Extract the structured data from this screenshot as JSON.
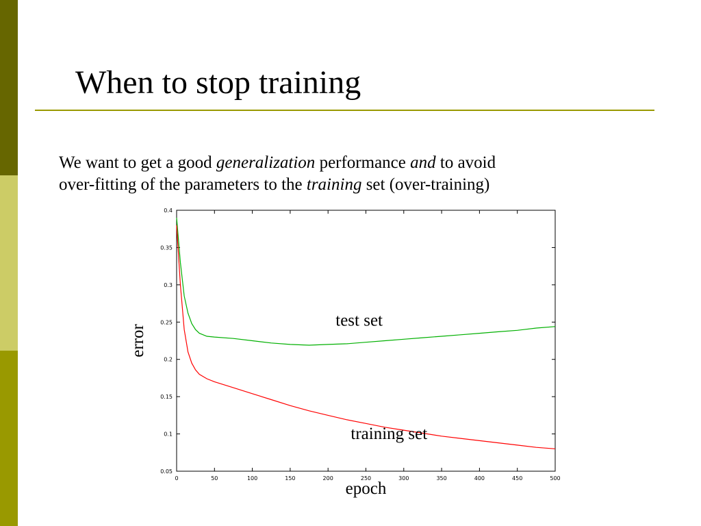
{
  "slide": {
    "title": "When to stop training",
    "colors": {
      "bar_top": "#666600",
      "bar_mid": "#cccc66",
      "bar_bottom": "#999900",
      "rule": "#999900"
    }
  },
  "body": {
    "line1": [
      {
        "text": "We want to get a good ",
        "italic": false
      },
      {
        "text": "generalization",
        "italic": true
      },
      {
        "text": " performance ",
        "italic": false
      },
      {
        "text": "and",
        "italic": true
      },
      {
        "text": " to avoid",
        "italic": false
      }
    ],
    "line2": [
      {
        "text": "over-fitting of the parameters to the ",
        "italic": false
      },
      {
        "text": "training",
        "italic": true
      },
      {
        "text": " set (over-training)",
        "italic": false
      }
    ]
  },
  "chart_data": {
    "type": "line",
    "title": "",
    "xlabel": "epoch",
    "ylabel": "error",
    "xlim": [
      0,
      500
    ],
    "ylim": [
      0.05,
      0.4
    ],
    "x_ticks": [
      0,
      50,
      100,
      150,
      200,
      250,
      300,
      350,
      400,
      450,
      500
    ],
    "y_ticks": [
      0.05,
      0.1,
      0.15,
      0.2,
      0.25,
      0.3,
      0.35,
      0.4
    ],
    "x_tick_labels": [
      "0",
      "50",
      "100",
      "150",
      "200",
      "250",
      "300",
      "350",
      "400",
      "450",
      "500"
    ],
    "y_tick_labels": [
      "0.05",
      "0.1",
      "0.15",
      "0.2",
      "0.25",
      "0.3",
      "0.35",
      "0.4"
    ],
    "grid": false,
    "series": [
      {
        "name": "test set",
        "color": "#00b000",
        "x": [
          0,
          5,
          10,
          15,
          20,
          25,
          30,
          40,
          50,
          75,
          100,
          125,
          150,
          175,
          200,
          225,
          250,
          275,
          300,
          325,
          350,
          375,
          400,
          425,
          450,
          475,
          500
        ],
        "y": [
          0.39,
          0.33,
          0.285,
          0.262,
          0.248,
          0.24,
          0.235,
          0.231,
          0.23,
          0.228,
          0.225,
          0.222,
          0.22,
          0.219,
          0.22,
          0.221,
          0.223,
          0.225,
          0.227,
          0.229,
          0.231,
          0.233,
          0.235,
          0.237,
          0.239,
          0.242,
          0.244
        ]
      },
      {
        "name": "training set",
        "color": "#ff0000",
        "x": [
          0,
          5,
          10,
          15,
          20,
          25,
          30,
          40,
          50,
          75,
          100,
          125,
          150,
          175,
          200,
          225,
          250,
          275,
          300,
          325,
          350,
          375,
          400,
          425,
          450,
          475,
          500
        ],
        "y": [
          0.38,
          0.3,
          0.24,
          0.21,
          0.195,
          0.186,
          0.18,
          0.174,
          0.17,
          0.162,
          0.154,
          0.146,
          0.138,
          0.131,
          0.125,
          0.119,
          0.114,
          0.109,
          0.105,
          0.101,
          0.097,
          0.094,
          0.091,
          0.088,
          0.085,
          0.082,
          0.08
        ]
      }
    ],
    "annotations": [
      {
        "text": "test set",
        "x": 210,
        "y": 0.245
      },
      {
        "text": "training set",
        "x": 230,
        "y": 0.093
      }
    ]
  }
}
